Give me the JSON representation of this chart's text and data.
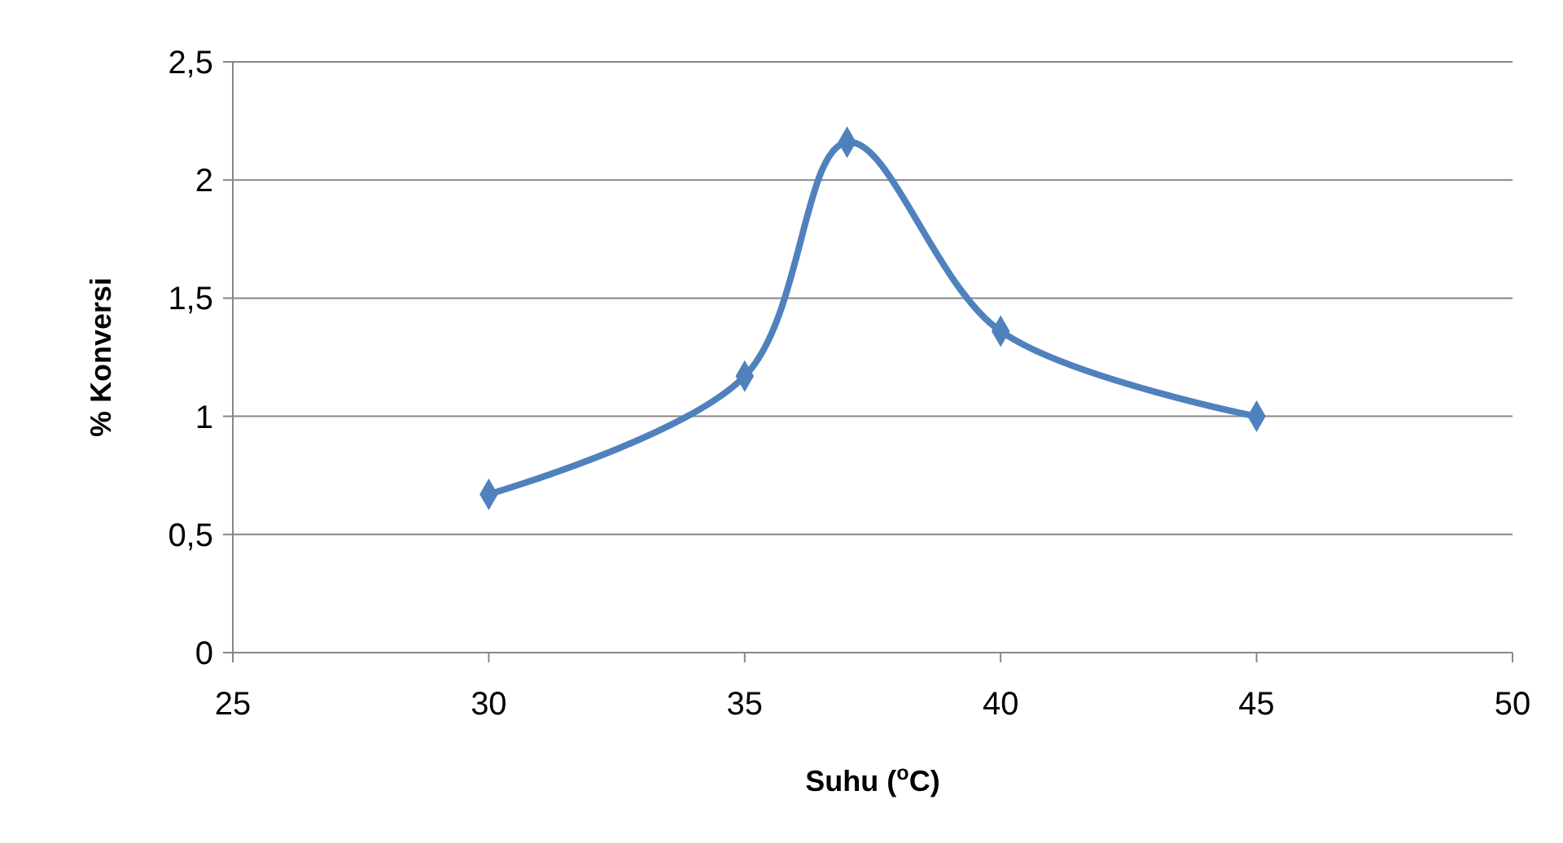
{
  "chart_data": {
    "type": "line",
    "xlabel": "Suhu ($^{o}$C)",
    "ylabel": "% Konversi",
    "x": [
      30,
      35,
      37,
      40,
      45
    ],
    "series": [
      {
        "color": "#4f81bd",
        "values": [
          0.67,
          1.17,
          2.16,
          1.36,
          1.0
        ],
        "line_style": "solid",
        "marker": "diamond"
      }
    ],
    "xlim": [
      25,
      50
    ],
    "xticks": [
      25,
      30,
      35,
      40,
      45,
      50
    ],
    "ylim": [
      0,
      2.5
    ],
    "yticks": [
      0,
      {
        "value": 0.5,
        "label": "0,5"
      },
      1,
      {
        "value": 1.5,
        "label": "1,5"
      },
      2,
      {
        "value": 2.5,
        "label": "2,5"
      }
    ],
    "grid": "y"
  }
}
